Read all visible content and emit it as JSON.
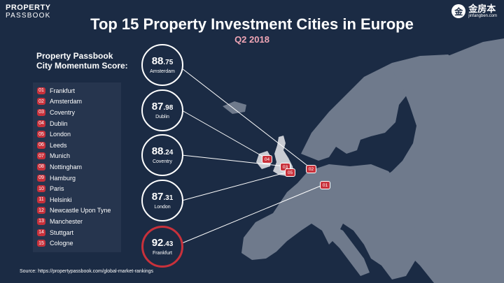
{
  "brand": {
    "line1": "PROPERTY",
    "line2": "PASSBOOK"
  },
  "site": {
    "logo": "金",
    "name": "金房本",
    "url": "jinfangben.com"
  },
  "title": "Top 15 Property Investment Cities in Europe",
  "subtitle": "Q2 2018",
  "score_label": {
    "line1": "Property Passbook",
    "line2": "City Momentum Score:"
  },
  "cities": [
    {
      "num": "01",
      "name": "Frankfurt"
    },
    {
      "num": "02",
      "name": "Amsterdam"
    },
    {
      "num": "03",
      "name": "Coventry"
    },
    {
      "num": "04",
      "name": "Dublin"
    },
    {
      "num": "05",
      "name": "London"
    },
    {
      "num": "06",
      "name": "Leeds"
    },
    {
      "num": "07",
      "name": "Munich"
    },
    {
      "num": "08",
      "name": "Nottingham"
    },
    {
      "num": "09",
      "name": "Hamburg"
    },
    {
      "num": "10",
      "name": "Paris"
    },
    {
      "num": "11",
      "name": "Helsinki"
    },
    {
      "num": "12",
      "name": "Newcastle Upon Tyne"
    },
    {
      "num": "13",
      "name": "Manchester"
    },
    {
      "num": "14",
      "name": "Stuttgart"
    },
    {
      "num": "15",
      "name": "Cologne"
    }
  ],
  "scores": [
    {
      "int": "88",
      "dec": ".75",
      "city": "Amsterdam"
    },
    {
      "int": "87",
      "dec": ".98",
      "city": "Dublin"
    },
    {
      "int": "88",
      "dec": ".24",
      "city": "Coventry"
    },
    {
      "int": "87",
      "dec": ".31",
      "city": "London"
    },
    {
      "int": "92",
      "dec": ".43",
      "city": "Frankfurt"
    }
  ],
  "map_markers": [
    "04",
    "03",
    "05",
    "02",
    "01"
  ],
  "source": "Source: https://propertypassbook.com/global-market-rankings",
  "colors": {
    "background": "#1b2b44",
    "land": "#6f7a8c",
    "uk": "#c9ccd3",
    "accent": "#c8313b",
    "subtitle": "#f0a6b6"
  }
}
